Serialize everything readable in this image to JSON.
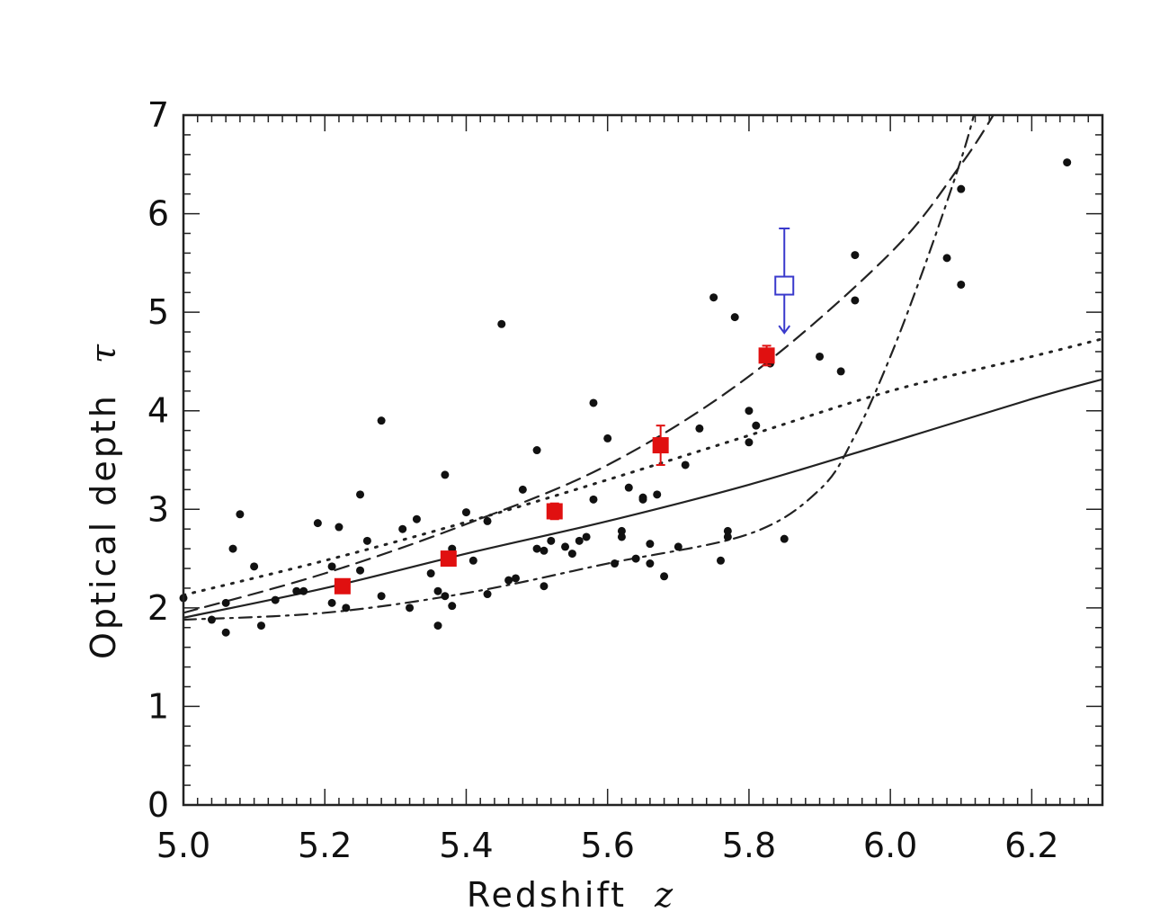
{
  "chart_data": {
    "type": "scatter",
    "title": "",
    "xlabel": "Redshift",
    "xlabel_symbol": "z",
    "ylabel": "Optical depth",
    "ylabel_symbol": "τ",
    "xlim": [
      5.0,
      6.3
    ],
    "ylim": [
      0,
      7
    ],
    "xticks": [
      5.0,
      5.2,
      5.4,
      5.6,
      5.8,
      6.0,
      6.2
    ],
    "xtick_labels": [
      "5.0",
      "5.2",
      "5.4",
      "5.6",
      "5.8",
      "6.0",
      "6.2"
    ],
    "yticks": [
      0,
      1,
      2,
      3,
      4,
      5,
      6,
      7
    ],
    "ytick_labels": [
      "0",
      "1",
      "2",
      "3",
      "4",
      "5",
      "6",
      "7"
    ],
    "grid": false,
    "colors": {
      "points": "#111111",
      "binned": "#e01010",
      "highlight": "#3a3acc",
      "curves": "#222222"
    },
    "series": [
      {
        "kind": "points",
        "points": [
          [
            5.0,
            2.1
          ],
          [
            5.04,
            1.88
          ],
          [
            5.06,
            1.75
          ],
          [
            5.06,
            2.05
          ],
          [
            5.07,
            2.6
          ],
          [
            5.08,
            2.95
          ],
          [
            5.1,
            2.42
          ],
          [
            5.11,
            1.82
          ],
          [
            5.13,
            2.08
          ],
          [
            5.16,
            2.17
          ],
          [
            5.17,
            2.17
          ],
          [
            5.19,
            2.86
          ],
          [
            5.21,
            2.42
          ],
          [
            5.21,
            2.05
          ],
          [
            5.22,
            2.82
          ],
          [
            5.23,
            2.0
          ],
          [
            5.25,
            3.15
          ],
          [
            5.25,
            2.38
          ],
          [
            5.26,
            2.68
          ],
          [
            5.28,
            3.9
          ],
          [
            5.28,
            2.12
          ],
          [
            5.31,
            2.8
          ],
          [
            5.32,
            2.0
          ],
          [
            5.33,
            2.9
          ],
          [
            5.35,
            2.35
          ],
          [
            5.36,
            2.17
          ],
          [
            5.36,
            1.82
          ],
          [
            5.37,
            2.12
          ],
          [
            5.37,
            3.35
          ],
          [
            5.38,
            2.6
          ],
          [
            5.38,
            2.02
          ],
          [
            5.4,
            2.97
          ],
          [
            5.41,
            2.48
          ],
          [
            5.43,
            2.14
          ],
          [
            5.43,
            2.88
          ],
          [
            5.45,
            4.88
          ],
          [
            5.46,
            2.28
          ],
          [
            5.47,
            2.3
          ],
          [
            5.48,
            3.2
          ],
          [
            5.5,
            2.6
          ],
          [
            5.5,
            3.6
          ],
          [
            5.51,
            2.22
          ],
          [
            5.51,
            2.58
          ],
          [
            5.52,
            2.68
          ],
          [
            5.53,
            2.95
          ],
          [
            5.53,
            3.0
          ],
          [
            5.54,
            2.62
          ],
          [
            5.55,
            2.55
          ],
          [
            5.56,
            2.68
          ],
          [
            5.57,
            2.72
          ],
          [
            5.58,
            3.1
          ],
          [
            5.58,
            4.08
          ],
          [
            5.6,
            3.72
          ],
          [
            5.61,
            2.45
          ],
          [
            5.62,
            2.72
          ],
          [
            5.62,
            2.78
          ],
          [
            5.63,
            3.22
          ],
          [
            5.64,
            2.5
          ],
          [
            5.65,
            3.12
          ],
          [
            5.65,
            3.1
          ],
          [
            5.66,
            2.65
          ],
          [
            5.66,
            2.45
          ],
          [
            5.67,
            3.15
          ],
          [
            5.68,
            2.32
          ],
          [
            5.7,
            2.62
          ],
          [
            5.71,
            3.45
          ],
          [
            5.73,
            3.82
          ],
          [
            5.75,
            5.15
          ],
          [
            5.76,
            2.48
          ],
          [
            5.77,
            2.78
          ],
          [
            5.77,
            2.72
          ],
          [
            5.78,
            4.95
          ],
          [
            5.8,
            4.0
          ],
          [
            5.8,
            3.68
          ],
          [
            5.81,
            3.85
          ],
          [
            5.83,
            4.48
          ],
          [
            5.85,
            2.7
          ],
          [
            5.9,
            4.55
          ],
          [
            5.93,
            4.4
          ],
          [
            5.95,
            5.58
          ],
          [
            5.95,
            5.12
          ],
          [
            6.08,
            5.55
          ],
          [
            6.1,
            6.25
          ],
          [
            6.1,
            5.28
          ],
          [
            6.25,
            6.52
          ]
        ]
      },
      {
        "kind": "binned",
        "marker": "filled-square",
        "points": [
          [
            5.225,
            2.22,
            0
          ],
          [
            5.375,
            2.5,
            0
          ],
          [
            5.525,
            2.98,
            0.08
          ],
          [
            5.675,
            3.65,
            0.2
          ],
          [
            5.825,
            4.56,
            0.1
          ]
        ]
      },
      {
        "kind": "highlight",
        "marker": "open-square",
        "points": [
          [
            5.85,
            5.27,
            0.58,
            0.48
          ]
        ]
      },
      {
        "kind": "curve",
        "style": "solid",
        "points": [
          [
            5.0,
            1.9
          ],
          [
            5.2,
            2.2
          ],
          [
            5.4,
            2.55
          ],
          [
            5.6,
            2.88
          ],
          [
            5.8,
            3.25
          ],
          [
            6.0,
            3.68
          ],
          [
            6.2,
            4.12
          ],
          [
            6.3,
            4.32
          ]
        ]
      },
      {
        "kind": "curve",
        "style": "dotted",
        "points": [
          [
            5.0,
            2.13
          ],
          [
            5.2,
            2.48
          ],
          [
            5.4,
            2.87
          ],
          [
            5.6,
            3.3
          ],
          [
            5.8,
            3.75
          ],
          [
            6.0,
            4.2
          ],
          [
            6.2,
            4.55
          ],
          [
            6.3,
            4.73
          ]
        ]
      },
      {
        "kind": "curve",
        "style": "dashed",
        "points": [
          [
            5.0,
            1.95
          ],
          [
            5.2,
            2.35
          ],
          [
            5.4,
            2.85
          ],
          [
            5.6,
            3.45
          ],
          [
            5.8,
            4.35
          ],
          [
            6.0,
            5.6
          ],
          [
            6.1,
            6.5
          ],
          [
            6.15,
            7.05
          ]
        ]
      },
      {
        "kind": "curve",
        "style": "dashdot",
        "points": [
          [
            5.0,
            1.88
          ],
          [
            5.2,
            1.95
          ],
          [
            5.4,
            2.15
          ],
          [
            5.6,
            2.45
          ],
          [
            5.8,
            2.75
          ],
          [
            5.9,
            3.2
          ],
          [
            5.95,
            3.75
          ],
          [
            6.0,
            4.55
          ],
          [
            6.05,
            5.5
          ],
          [
            6.1,
            6.55
          ],
          [
            6.12,
            7.05
          ]
        ]
      }
    ]
  }
}
